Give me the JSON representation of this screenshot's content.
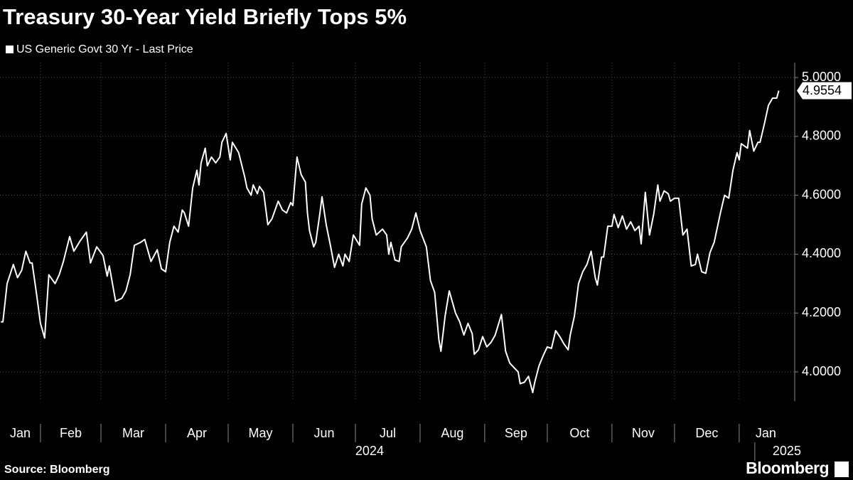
{
  "chart_data": {
    "type": "line",
    "title": "Treasury 30-Year Yield Briefly Tops 5%",
    "source": "Source: Bloomberg",
    "brand": "Bloomberg",
    "years": [
      "2024",
      "2025"
    ],
    "xlim": [
      11.6,
      391.6
    ],
    "xticks": [
      {
        "value": 0,
        "label": "Jan"
      },
      {
        "value": 31,
        "label": "Feb"
      },
      {
        "value": 60,
        "label": "Mar"
      },
      {
        "value": 91,
        "label": "Apr"
      },
      {
        "value": 121,
        "label": "May"
      },
      {
        "value": 152,
        "label": "Jun"
      },
      {
        "value": 182,
        "label": "Jul"
      },
      {
        "value": 213,
        "label": "Aug"
      },
      {
        "value": 244,
        "label": "Sep"
      },
      {
        "value": 274,
        "label": "Oct"
      },
      {
        "value": 305,
        "label": "Nov"
      },
      {
        "value": 335,
        "label": "Dec"
      },
      {
        "value": 366,
        "label": "Jan"
      }
    ],
    "ylim": [
      3.9,
      5.05
    ],
    "yticks": [
      {
        "value": 4.0,
        "label": "4.0000"
      },
      {
        "value": 4.2,
        "label": "4.2000"
      },
      {
        "value": 4.4,
        "label": "4.4000"
      },
      {
        "value": 4.6,
        "label": "4.6000"
      },
      {
        "value": 4.8,
        "label": "4.8000"
      },
      {
        "value": 5.0,
        "label": "5.0000"
      }
    ],
    "grid": true,
    "x": [
      12,
      13,
      15,
      18,
      20,
      22,
      24,
      26,
      27,
      29,
      31,
      33,
      35,
      38,
      40,
      42,
      45,
      47,
      50,
      53,
      55,
      58,
      61,
      63,
      64,
      67,
      70,
      72,
      74,
      76,
      79,
      81,
      84,
      87,
      89,
      91,
      93,
      95,
      97,
      99,
      100,
      102,
      104,
      106,
      107,
      108,
      110,
      111,
      113,
      115,
      117,
      118,
      120,
      122,
      123,
      126,
      129,
      130,
      132,
      133,
      135,
      136,
      138,
      140,
      142,
      145,
      147,
      149,
      151,
      152,
      154,
      156,
      158,
      159,
      160,
      162,
      163,
      165,
      166,
      168,
      170,
      172,
      174,
      176,
      177,
      179,
      181,
      184,
      185,
      187,
      189,
      190,
      192,
      195,
      197,
      198,
      199,
      201,
      203,
      204,
      207,
      209,
      211,
      213,
      216,
      218,
      220,
      222,
      223,
      225,
      227,
      230,
      232,
      234,
      236,
      238,
      239,
      241,
      243,
      245,
      247,
      249,
      252,
      254,
      256,
      258,
      260,
      261,
      263,
      265,
      267,
      268,
      270,
      272,
      274,
      276,
      278,
      280,
      282,
      284,
      285,
      287,
      289,
      291,
      293,
      295,
      297,
      298,
      300,
      301,
      303,
      305,
      306,
      308,
      310,
      312,
      314,
      316,
      318,
      319,
      321,
      323,
      325,
      327,
      328,
      330,
      332,
      333,
      335,
      337,
      339,
      341,
      343,
      345,
      346,
      348,
      350,
      352,
      354,
      357,
      359,
      361,
      363,
      365,
      366,
      367,
      370,
      371,
      373,
      375,
      376,
      378,
      380,
      382,
      384,
      385
    ],
    "series": [
      {
        "name": "US Generic Govt 30 Yr - Last Price",
        "color": "#ffffff",
        "values": [
          4.17,
          4.17,
          4.3,
          4.365,
          4.32,
          4.345,
          4.41,
          4.37,
          4.37,
          4.27,
          4.165,
          4.115,
          4.33,
          4.3,
          4.33,
          4.375,
          4.46,
          4.41,
          4.445,
          4.475,
          4.37,
          4.425,
          4.395,
          4.325,
          4.36,
          4.24,
          4.25,
          4.275,
          4.33,
          4.43,
          4.44,
          4.45,
          4.375,
          4.415,
          4.35,
          4.34,
          4.44,
          4.495,
          4.475,
          4.55,
          4.54,
          4.495,
          4.625,
          4.685,
          4.635,
          4.71,
          4.76,
          4.7,
          4.73,
          4.71,
          4.73,
          4.78,
          4.81,
          4.72,
          4.78,
          4.745,
          4.66,
          4.625,
          4.6,
          4.635,
          4.605,
          4.63,
          4.61,
          4.5,
          4.52,
          4.58,
          4.55,
          4.54,
          4.575,
          4.565,
          4.73,
          4.67,
          4.645,
          4.54,
          4.48,
          4.425,
          4.44,
          4.54,
          4.595,
          4.5,
          4.43,
          4.355,
          4.4,
          4.36,
          4.4,
          4.375,
          4.465,
          4.43,
          4.57,
          4.625,
          4.6,
          4.52,
          4.465,
          4.485,
          4.465,
          4.4,
          4.44,
          4.38,
          4.375,
          4.425,
          4.455,
          4.485,
          4.54,
          4.48,
          4.425,
          4.31,
          4.27,
          4.11,
          4.07,
          4.19,
          4.275,
          4.2,
          4.17,
          4.125,
          4.165,
          4.13,
          4.06,
          4.075,
          4.12,
          4.085,
          4.1,
          4.125,
          4.195,
          4.07,
          4.03,
          4.015,
          4.0,
          3.96,
          3.965,
          3.985,
          3.93,
          3.965,
          4.02,
          4.055,
          4.085,
          4.08,
          4.14,
          4.12,
          4.095,
          4.075,
          4.125,
          4.19,
          4.3,
          4.34,
          4.365,
          4.41,
          4.32,
          4.295,
          4.39,
          4.39,
          4.495,
          4.495,
          4.535,
          4.49,
          4.53,
          4.485,
          4.51,
          4.48,
          4.495,
          4.435,
          4.61,
          4.465,
          4.535,
          4.635,
          4.58,
          4.615,
          4.605,
          4.58,
          4.59,
          4.59,
          4.465,
          4.485,
          4.36,
          4.365,
          4.4,
          4.34,
          4.335,
          4.405,
          4.44,
          4.54,
          4.6,
          4.59,
          4.685,
          4.745,
          4.72,
          4.775,
          4.76,
          4.82,
          4.75,
          4.78,
          4.78,
          4.84,
          4.905,
          4.93,
          4.93,
          4.9554
        ]
      }
    ]
  }
}
